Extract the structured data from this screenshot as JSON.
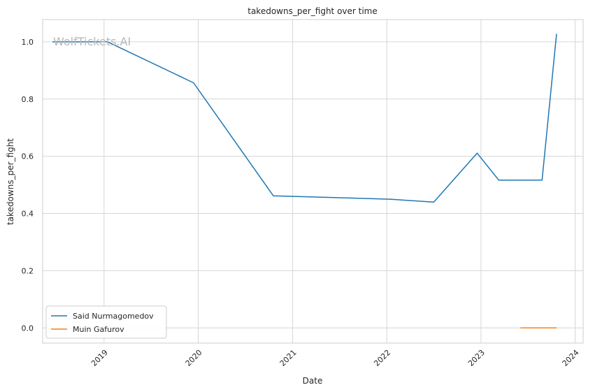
{
  "chart_data": {
    "type": "line",
    "title": "takedowns_per_fight over time",
    "xlabel": "Date",
    "ylabel": "takedowns_per_fight",
    "watermark": "WolfTickets.AI",
    "xlim": [
      "2018-05-08",
      "2024-02-01"
    ],
    "ylim": [
      -0.053,
      1.078
    ],
    "x_ticks": [
      "2019-01-01",
      "2020-01-01",
      "2021-01-01",
      "2022-01-01",
      "2023-01-01",
      "2024-01-01"
    ],
    "x_tick_labels": [
      "2019",
      "2020",
      "2021",
      "2022",
      "2023",
      "2024"
    ],
    "y_ticks": [
      0.0,
      0.2,
      0.4,
      0.6,
      0.8,
      1.0
    ],
    "y_tick_labels": [
      "0.0",
      "0.2",
      "0.4",
      "0.6",
      "0.8",
      "1.0"
    ],
    "grid": true,
    "legend_position": "lower-left",
    "series": [
      {
        "name": "Said Nurmagomedov",
        "color": "#1f77b4",
        "x": [
          "2018-06-15",
          "2019-01-15",
          "2019-12-14",
          "2020-10-18",
          "2022-01-15",
          "2022-07-02",
          "2022-12-17",
          "2023-03-11",
          "2023-08-26",
          "2023-10-21"
        ],
        "y": [
          1.0,
          1.0,
          0.857,
          0.462,
          0.45,
          0.44,
          0.611,
          0.517,
          0.517,
          1.028
        ]
      },
      {
        "name": "Muin Gafurov",
        "color": "#ff7f0e",
        "x": [
          "2023-06-03",
          "2023-10-21"
        ],
        "y": [
          0.0,
          0.0
        ]
      }
    ]
  }
}
